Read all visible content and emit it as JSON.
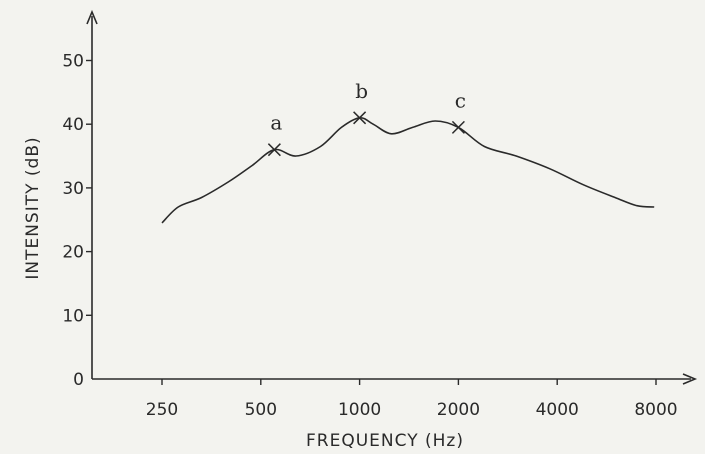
{
  "chart_data": {
    "type": "line",
    "xlabel": "FREQUENCY (Hz)",
    "ylabel": "INTENSITY (dB)",
    "x_scale": "log2",
    "xticks": [
      250,
      500,
      1000,
      2000,
      4000,
      8000
    ],
    "xtick_labels": [
      "250",
      "500",
      "1000",
      "2000",
      "4000",
      "8000"
    ],
    "yticks": [
      0,
      10,
      20,
      30,
      40,
      50
    ],
    "ytick_labels": [
      "0",
      "10",
      "20",
      "30",
      "40",
      "50"
    ],
    "ylim": [
      0,
      55
    ],
    "xlim": [
      180,
      10000
    ],
    "grid": false,
    "series": [
      {
        "x": [
          250,
          280,
          330,
          400,
          470,
          550,
          640,
          760,
          880,
          1000,
          1100,
          1250,
          1450,
          1700,
          2000,
          2400,
          3000,
          3800,
          4800,
          6000,
          7000,
          7900
        ],
        "y": [
          24.5,
          27,
          28.5,
          31,
          33.5,
          36,
          35,
          36.5,
          39.5,
          41,
          40,
          38.5,
          39.5,
          40.5,
          39.5,
          36.5,
          35,
          33,
          30.5,
          28.5,
          27.2,
          27
        ]
      }
    ],
    "annotations": [
      {
        "label": "a",
        "x": 550,
        "y": 36
      },
      {
        "label": "b",
        "x": 1000,
        "y": 41
      },
      {
        "label": "c",
        "x": 2000,
        "y": 39.5
      }
    ]
  }
}
